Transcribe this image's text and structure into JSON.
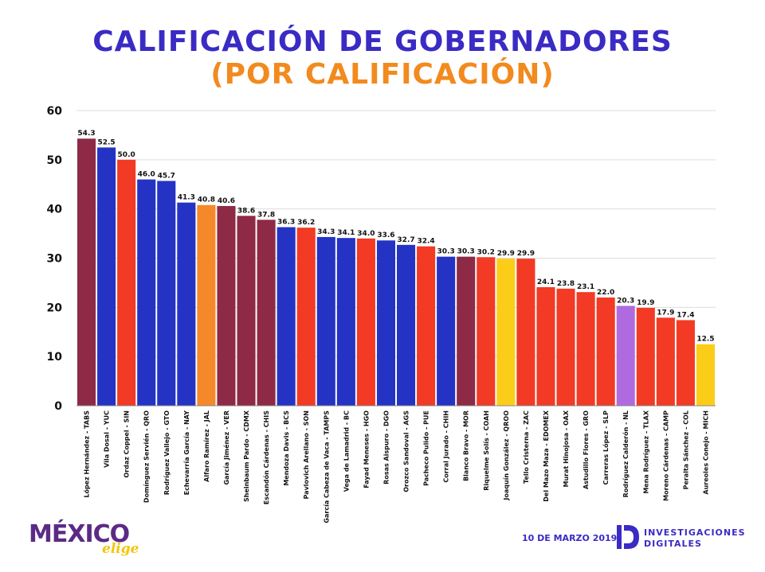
{
  "header": {
    "title": "CALIFICACIÓN DE GOBERNADORES",
    "subtitle": "(POR CALIFICACIÓN)"
  },
  "footer": {
    "logo_main": "MÉXICO",
    "logo_sub": "elige",
    "date": "10 DE MARZO 2019",
    "brand_line1": "INVESTIGACIONES",
    "brand_line2": "DIGITALES"
  },
  "colors": {
    "title": "#3a2bc4",
    "subtitle": "#f28a1e",
    "maroon": "#8e2a46",
    "blue": "#2433c4",
    "red": "#f23a24",
    "orange": "#f5892a",
    "yellow": "#fccd18",
    "purple": "#b06ae0",
    "grid": "#dddddd"
  },
  "chart_data": {
    "type": "bar",
    "ylim": [
      0,
      60
    ],
    "yticks": [
      "0",
      "10",
      "20",
      "30",
      "40",
      "50",
      "60"
    ],
    "grid": true,
    "legend": "none",
    "categories": [
      "López Hernández - TABS",
      "Vila Dosal - YUC",
      "Ordaz Coppel - SIN",
      "Domínguez Servién - QRO",
      "Rodríguez Vallejo - GTO",
      "Echevarría García - NAY",
      "Alfaro Ramírez - JAL",
      "García Jiménez - VER",
      "Sheinbaum Pardo - CDMX",
      "Escandón Cárdenas - CHIS",
      "Mendoza Davis - BCS",
      "Pavlovich Arellano - SON",
      "García Cabeza de Vaca - TAMPS",
      "Vega de Lamadrid - BC",
      "Fayad Meneses - HGO",
      "Rosas Aispuro - DGO",
      "Orozco Sandoval - AGS",
      "Pacheco Pulido - PUE",
      "Corral Jurado - CHIH",
      "Blanco Bravo - MOR",
      "Riquelme Solís - COAH",
      "Joaquín González - QROO",
      "Tello Cristerna - ZAC",
      "Del Mazo Maza - EDOMEX",
      "Murat Hinojosa - OAX",
      "Astudillo Flores - GRO",
      "Carreras López - SLP",
      "Rodríguez Calderón - NL",
      "Mena Rodríguez - TLAX",
      "Moreno Cárdenas - CAMP",
      "Peralta Sánchez - COL",
      "Aureoles Conejo - MICH"
    ],
    "values": [
      54.3,
      52.5,
      50.0,
      46.0,
      45.7,
      41.3,
      40.8,
      40.6,
      38.6,
      37.8,
      36.3,
      36.2,
      34.3,
      34.1,
      34.0,
      33.6,
      32.7,
      32.4,
      30.3,
      30.3,
      30.2,
      29.9,
      29.9,
      24.1,
      23.8,
      23.1,
      22.0,
      20.3,
      19.9,
      17.9,
      17.4,
      12.5
    ],
    "labels": [
      "54.3",
      "52.5",
      "50.0",
      "46.0",
      "45.7",
      "41.3",
      "40.8",
      "40.6",
      "38.6",
      "37.8",
      "36.3",
      "36.2",
      "34.3",
      "34.1",
      "34.0",
      "33.6",
      "32.7",
      "32.4",
      "30.3",
      "30.3",
      "30.2",
      "29.9",
      "29.9",
      "24.1",
      "23.8",
      "23.1",
      "22.0",
      "20.3",
      "19.9",
      "17.9",
      "17.4",
      "12.5"
    ],
    "bar_colors": [
      "#8e2a46",
      "#2433c4",
      "#f23a24",
      "#2433c4",
      "#2433c4",
      "#2433c4",
      "#f5892a",
      "#8e2a46",
      "#8e2a46",
      "#8e2a46",
      "#2433c4",
      "#f23a24",
      "#2433c4",
      "#2433c4",
      "#f23a24",
      "#2433c4",
      "#2433c4",
      "#f23a24",
      "#2433c4",
      "#8e2a46",
      "#f23a24",
      "#fccd18",
      "#f23a24",
      "#f23a24",
      "#f23a24",
      "#f23a24",
      "#f23a24",
      "#b06ae0",
      "#f23a24",
      "#f23a24",
      "#f23a24",
      "#fccd18"
    ]
  }
}
